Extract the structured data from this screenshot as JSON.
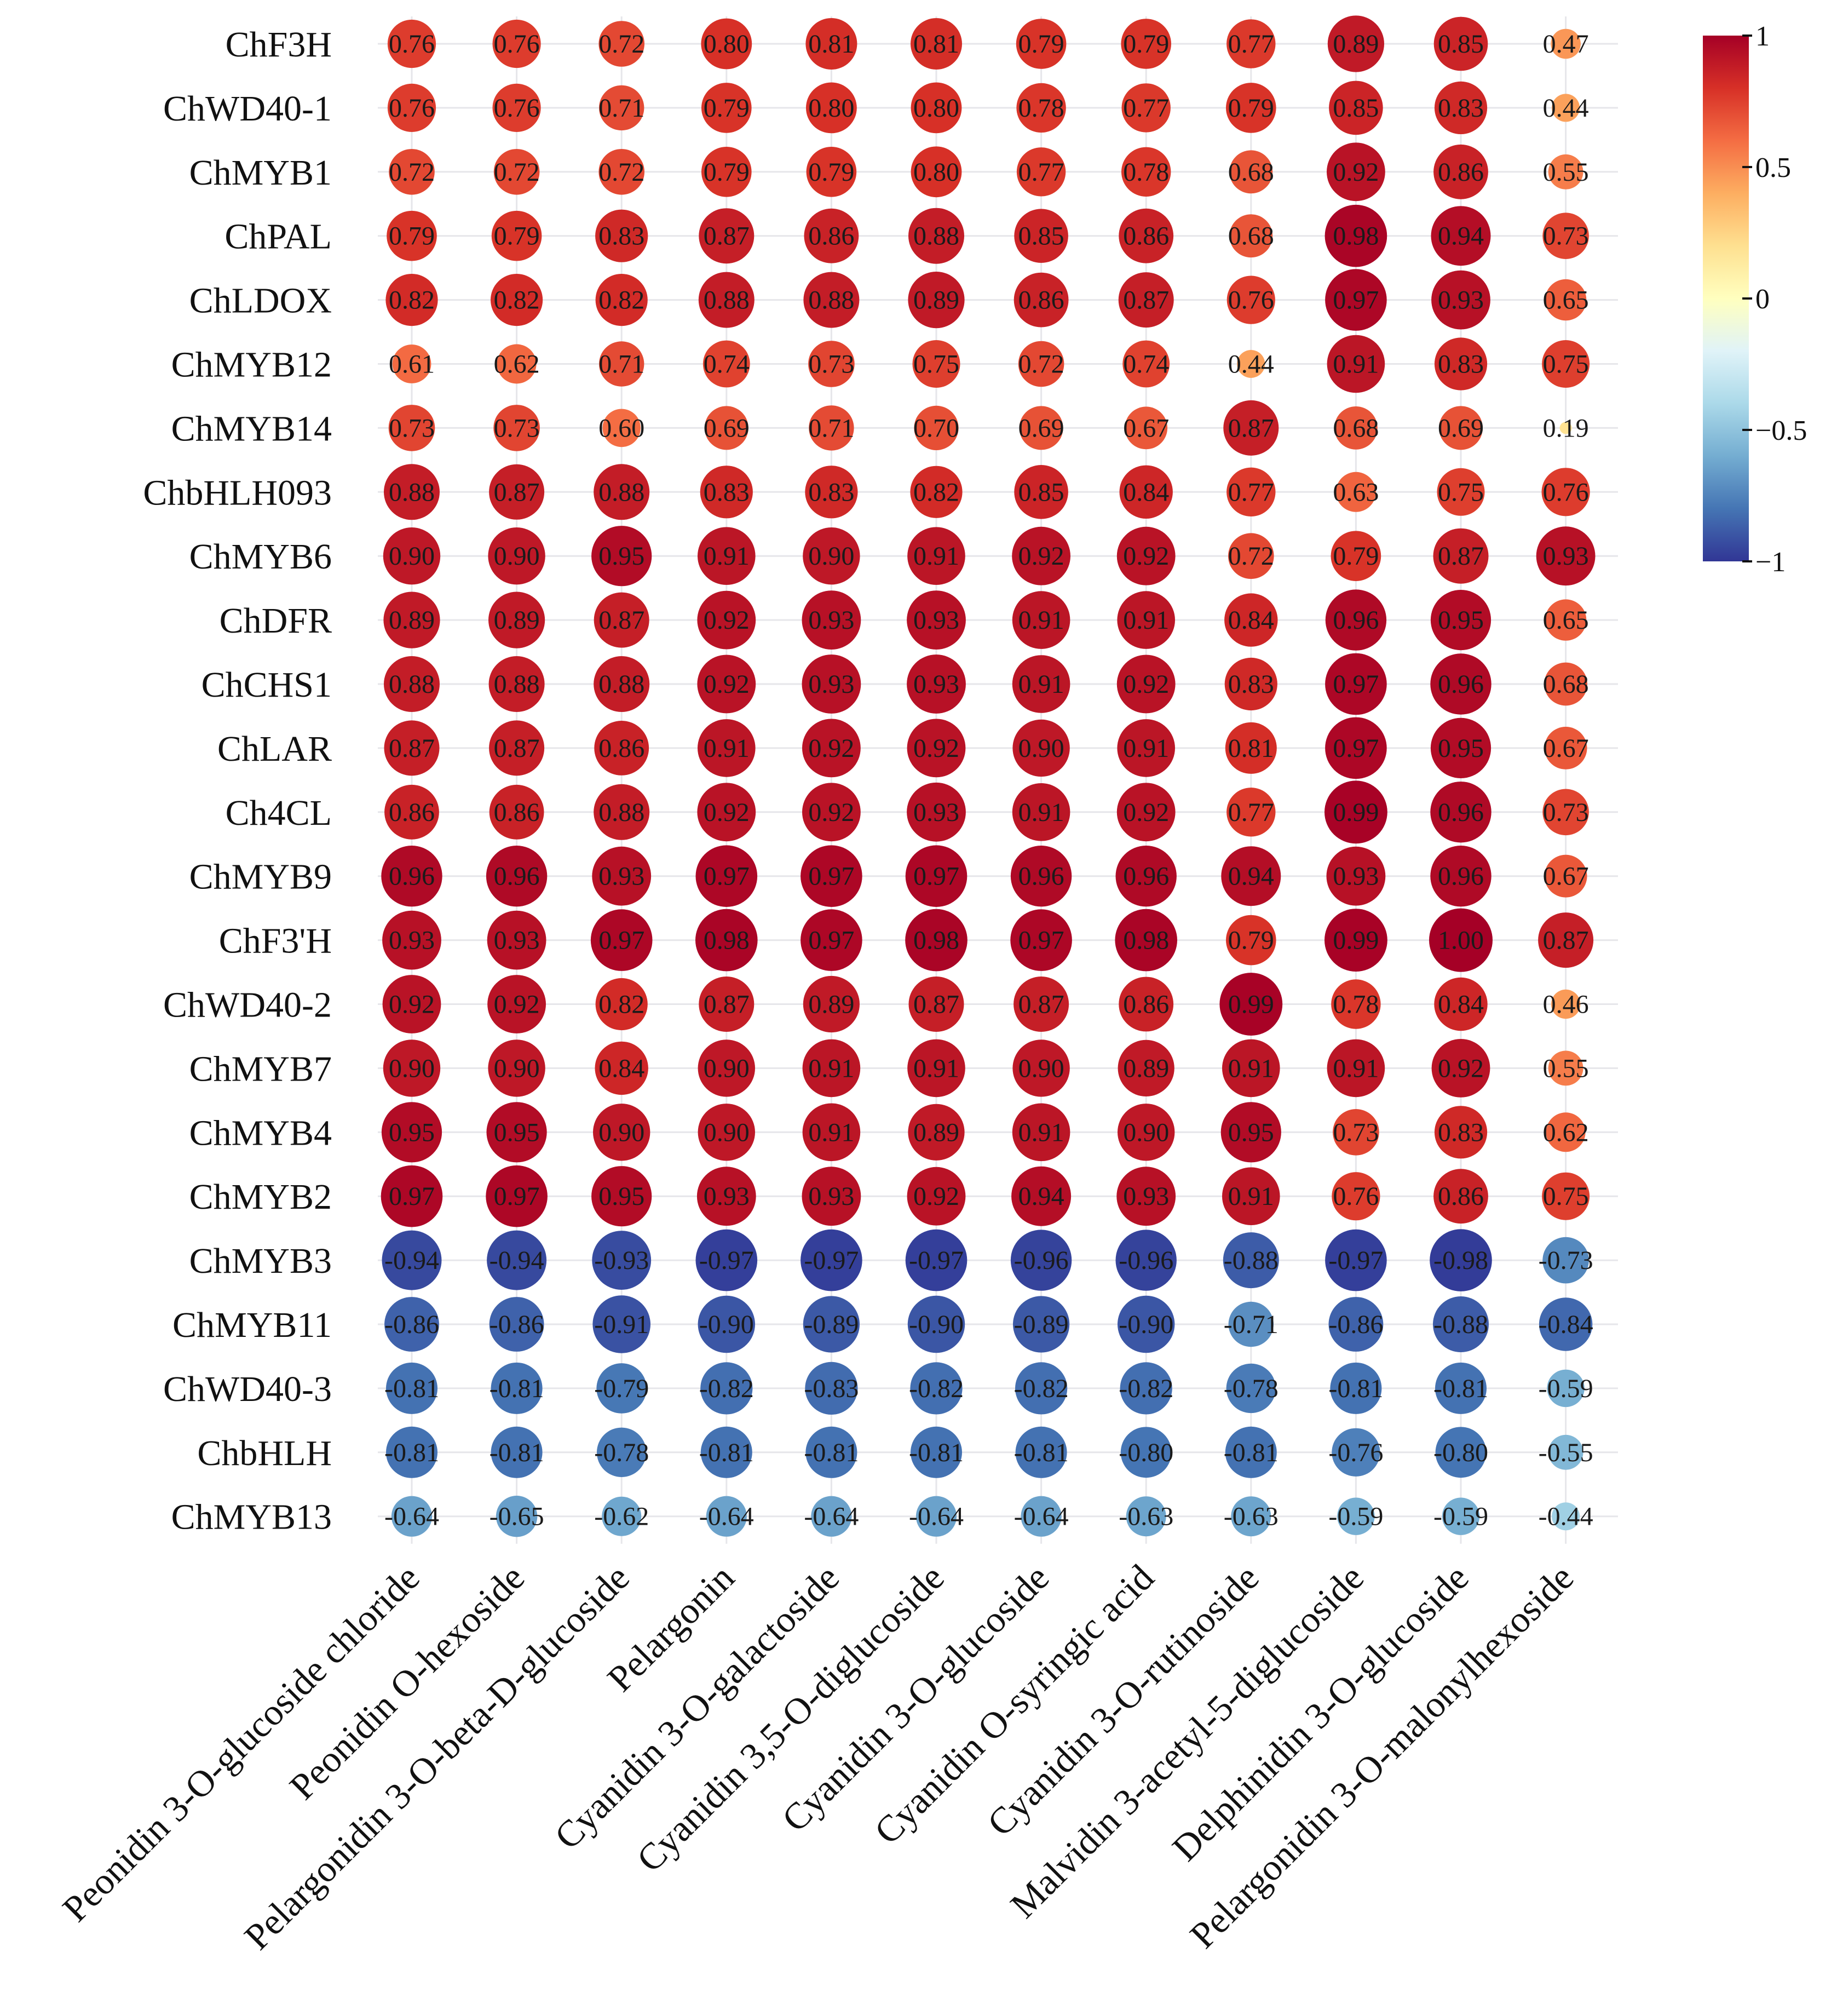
{
  "chart_data": {
    "type": "heatmap",
    "title": "",
    "xlabel": "",
    "ylabel": "",
    "rows": [
      "ChF3H",
      "ChWD40-1",
      "ChMYB1",
      "ChPAL",
      "ChLDOX",
      "ChMYB12",
      "ChMYB14",
      "ChbHLH093",
      "ChMYB6",
      "ChDFR",
      "ChCHS1",
      "ChLAR",
      "Ch4CL",
      "ChMYB9",
      "ChF3'H",
      "ChWD40-2",
      "ChMYB7",
      "ChMYB4",
      "ChMYB2",
      "ChMYB3",
      "ChMYB11",
      "ChWD40-3",
      "ChbHLH",
      "ChMYB13"
    ],
    "columns": [
      "Peonidin 3-O-glucoside chloride",
      "Peonidin O-hexoside",
      "Pelargonidin 3-O-beta-D-glucoside",
      "Pelargonin",
      "Cyanidin 3-O-galactoside",
      "Cyanidin 3,5-O-diglucoside",
      "Cyanidin 3-O-glucoside",
      "Cyanidin O-syringic acid",
      "Cyanidin 3-O-rutinoside",
      "Malvidin 3-acetyl-5-diglucoside",
      "Delphinidin 3-O-glucoside",
      "Pelargonidin 3-O-malonylhexoside"
    ],
    "values": [
      [
        0.76,
        0.76,
        0.72,
        0.8,
        0.81,
        0.81,
        0.79,
        0.79,
        0.77,
        0.89,
        0.85,
        0.47
      ],
      [
        0.76,
        0.76,
        0.71,
        0.79,
        0.8,
        0.8,
        0.78,
        0.77,
        0.79,
        0.85,
        0.83,
        0.44
      ],
      [
        0.72,
        0.72,
        0.72,
        0.79,
        0.79,
        0.8,
        0.77,
        0.78,
        0.68,
        0.92,
        0.86,
        0.55
      ],
      [
        0.79,
        0.79,
        0.83,
        0.87,
        0.86,
        0.88,
        0.85,
        0.86,
        0.68,
        0.98,
        0.94,
        0.73
      ],
      [
        0.82,
        0.82,
        0.82,
        0.88,
        0.88,
        0.89,
        0.86,
        0.87,
        0.76,
        0.97,
        0.93,
        0.65
      ],
      [
        0.61,
        0.62,
        0.71,
        0.74,
        0.73,
        0.75,
        0.72,
        0.74,
        0.44,
        0.91,
        0.83,
        0.75
      ],
      [
        0.73,
        0.73,
        0.6,
        0.69,
        0.71,
        0.7,
        0.69,
        0.67,
        0.87,
        0.68,
        0.69,
        0.19
      ],
      [
        0.88,
        0.87,
        0.88,
        0.83,
        0.83,
        0.82,
        0.85,
        0.84,
        0.77,
        0.63,
        0.75,
        0.76
      ],
      [
        0.9,
        0.9,
        0.95,
        0.91,
        0.9,
        0.91,
        0.92,
        0.92,
        0.72,
        0.79,
        0.87,
        0.93
      ],
      [
        0.89,
        0.89,
        0.87,
        0.92,
        0.93,
        0.93,
        0.91,
        0.91,
        0.84,
        0.96,
        0.95,
        0.65
      ],
      [
        0.88,
        0.88,
        0.88,
        0.92,
        0.93,
        0.93,
        0.91,
        0.92,
        0.83,
        0.97,
        0.96,
        0.68
      ],
      [
        0.87,
        0.87,
        0.86,
        0.91,
        0.92,
        0.92,
        0.9,
        0.91,
        0.81,
        0.97,
        0.95,
        0.67
      ],
      [
        0.86,
        0.86,
        0.88,
        0.92,
        0.92,
        0.93,
        0.91,
        0.92,
        0.77,
        0.99,
        0.96,
        0.73
      ],
      [
        0.96,
        0.96,
        0.93,
        0.97,
        0.97,
        0.97,
        0.96,
        0.96,
        0.94,
        0.93,
        0.96,
        0.67
      ],
      [
        0.93,
        0.93,
        0.97,
        0.98,
        0.97,
        0.98,
        0.97,
        0.98,
        0.79,
        0.99,
        1.0,
        0.87
      ],
      [
        0.92,
        0.92,
        0.82,
        0.87,
        0.89,
        0.87,
        0.87,
        0.86,
        0.99,
        0.78,
        0.84,
        0.46
      ],
      [
        0.9,
        0.9,
        0.84,
        0.9,
        0.91,
        0.91,
        0.9,
        0.89,
        0.91,
        0.91,
        0.92,
        0.55
      ],
      [
        0.95,
        0.95,
        0.9,
        0.9,
        0.91,
        0.89,
        0.91,
        0.9,
        0.95,
        0.73,
        0.83,
        0.62
      ],
      [
        0.97,
        0.97,
        0.95,
        0.93,
        0.93,
        0.92,
        0.94,
        0.93,
        0.91,
        0.76,
        0.86,
        0.75
      ],
      [
        -0.94,
        -0.94,
        -0.93,
        -0.97,
        -0.97,
        -0.97,
        -0.96,
        -0.96,
        -0.88,
        -0.97,
        -0.98,
        -0.73
      ],
      [
        -0.86,
        -0.86,
        -0.91,
        -0.9,
        -0.89,
        -0.9,
        -0.89,
        -0.9,
        -0.71,
        -0.86,
        -0.88,
        -0.84
      ],
      [
        -0.81,
        -0.81,
        -0.79,
        -0.82,
        -0.83,
        -0.82,
        -0.82,
        -0.82,
        -0.78,
        -0.81,
        -0.81,
        -0.59
      ],
      [
        -0.81,
        -0.81,
        -0.78,
        -0.81,
        -0.81,
        -0.81,
        -0.81,
        -0.8,
        -0.81,
        -0.76,
        -0.8,
        -0.55
      ],
      [
        -0.64,
        -0.65,
        -0.62,
        -0.64,
        -0.64,
        -0.64,
        -0.64,
        -0.63,
        -0.63,
        -0.59,
        -0.59,
        -0.44
      ]
    ],
    "colorbar": {
      "range": [
        -1,
        1
      ],
      "ticks": [
        1,
        0.5,
        0,
        -0.5,
        -1
      ],
      "tick_labels": [
        "1",
        "0.5",
        "0",
        "−0.5",
        "−1"
      ],
      "colormap": [
        "#313695",
        "#4575b4",
        "#74add1",
        "#abd9e9",
        "#e0f3f8",
        "#ffffbf",
        "#fee090",
        "#fdae61",
        "#f46d43",
        "#d73027",
        "#a50026"
      ]
    }
  }
}
